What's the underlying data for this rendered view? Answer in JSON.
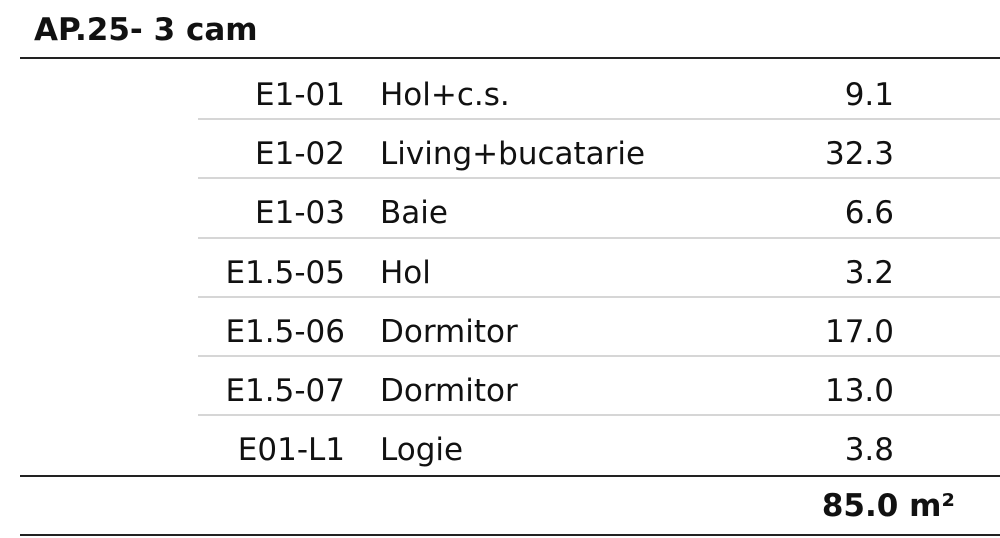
{
  "title": "AP.25- 3 cam",
  "rows": [
    {
      "code": "E1-01",
      "name": "Hol+c.s.",
      "area": "9.1"
    },
    {
      "code": "E1-02",
      "name": "Living+bucatarie",
      "area": "32.3"
    },
    {
      "code": "E1-03",
      "name": "Baie",
      "area": "6.6"
    },
    {
      "code": "E1.5-05",
      "name": "Hol",
      "area": "3.2"
    },
    {
      "code": "E1.5-06",
      "name": "Dormitor",
      "area": "17.0"
    },
    {
      "code": "E1.5-07",
      "name": "Dormitor",
      "area": "13.0"
    },
    {
      "code": "E01-L1",
      "name": "Logie",
      "area": "3.8"
    }
  ],
  "total": "85.0 m²"
}
